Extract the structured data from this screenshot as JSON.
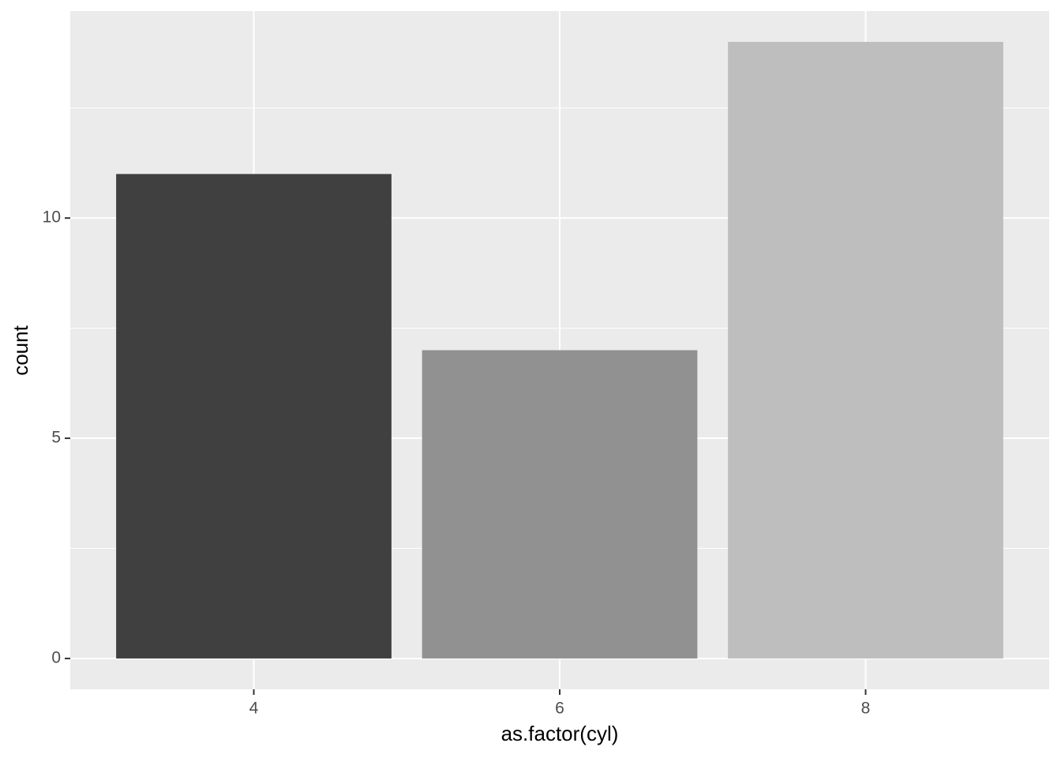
{
  "chart_data": {
    "type": "bar",
    "x_label": "as.factor(cyl)",
    "y_label": "count",
    "categories": [
      "4",
      "6",
      "8"
    ],
    "values": [
      11,
      7,
      14
    ],
    "colors": [
      "#404040",
      "#919191",
      "#bebebe"
    ],
    "ylim": [
      -0.7,
      14.7
    ],
    "yticks": [
      0,
      5,
      10
    ],
    "minor_yticks": [
      2.5,
      7.5,
      12.5
    ],
    "grid": true
  }
}
